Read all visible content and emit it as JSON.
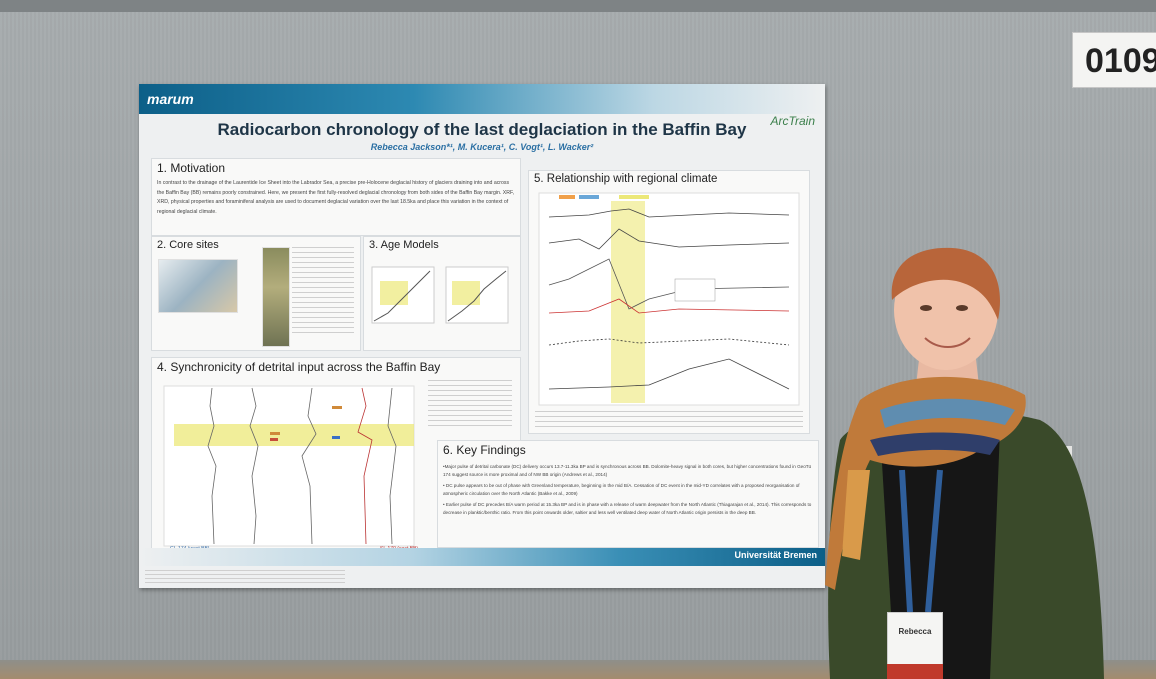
{
  "board": {
    "number": "0109"
  },
  "poster": {
    "logo_left": "marum",
    "logo_right": "ArcTrain",
    "title": "Radiocarbon chronology of the last deglaciation in the Baffin Bay",
    "authors": "Rebecca Jackson*¹, M. Kucera¹, C. Vogt¹, L. Wacker²",
    "university": "Universität Bremen",
    "sections": {
      "motivation": {
        "heading": "1. Motivation",
        "text": "In contrast to the drainage of the Laurentide Ice Sheet into the Labrador Sea, a precise pre-Holocene deglacial history of glaciers draining into and across the Baffin Bay (BB) remains poorly constrained. Here, we present the first fully-resolved deglacial chronology from both sides of the Baffin Bay margin. XRF, XRD, physical properties and foraminiferal analysis are used to document deglacial variation over the last 18.5ka and place this variation in the context of regional deglacial climate."
      },
      "core_sites": {
        "heading": "2. Core sites"
      },
      "age_models": {
        "heading": "3. Age Models"
      },
      "synchronicity": {
        "heading": "4. Synchronicity of detrital input across the Baffin Bay",
        "label_left": "GL.174 (west BB)",
        "label_right": "SL.170 (east BB)"
      },
      "relationship": {
        "heading": "5. Relationship with regional climate"
      },
      "key_findings": {
        "heading": "6. Key Findings",
        "bullets": [
          "•Major pulse of detrital carbonate (DC) delivery occurs 13.7-11.3ka BP and is synchronous across BB. Dolomite-heavy signal in both cores, but higher concentrations found in GeoTü 174 suggest source is more proximal and of NW BB origin (Andrews et al., 2014)",
          "• DC pulse appears to be out of phase with Greenland temperature, beginning in the mid B/A. Cessation of DC event in the mid-YD correlates with a proposed reorganisation of atmospheric circulation over the North Atlantic (Bakke et al., 2009)",
          "• Earlier pulse of DC precedes B/A warm period at 15.3ka BP and is in phase with a release of warm deepwater from the North Atlantic (Thiagarajan et al., 2014). This corresponds to decrease in planktic/benthic ratio. From this point onwards older, saltier and less well ventilated deep water of North Atlantic origin persists in the deep BB."
        ]
      }
    }
  },
  "badge": {
    "name": "Rebecca"
  }
}
